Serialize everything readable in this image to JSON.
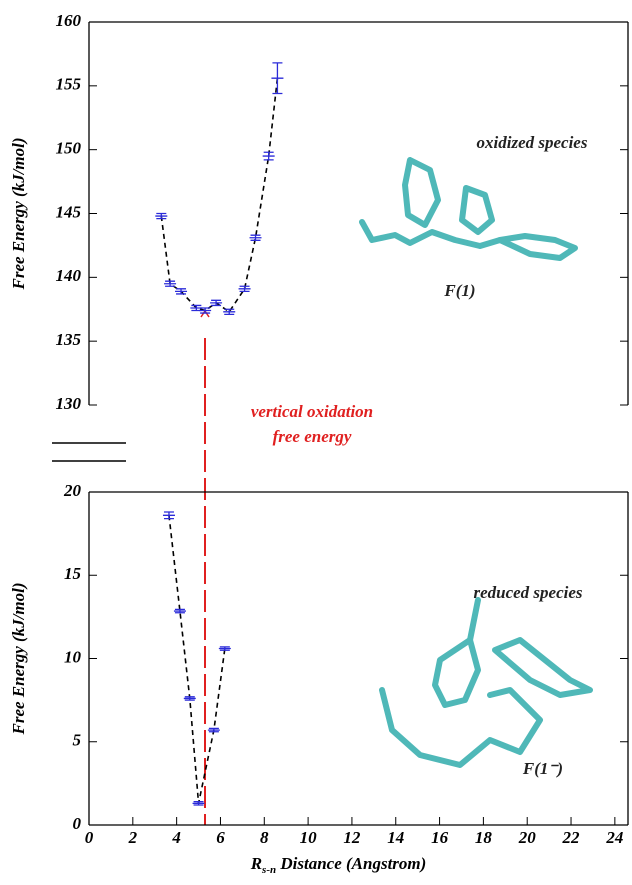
{
  "chart_data": [
    {
      "type": "line",
      "y_label": "Free Energy (kJ/mol)",
      "xlim": [
        0,
        24.6
      ],
      "ylim": [
        130,
        160
      ],
      "yticks": [
        130,
        135,
        140,
        145,
        150,
        155,
        160
      ],
      "series": [
        {
          "line_color": "#000000",
          "marker_color": "#2b2bd9",
          "x": [
            3.3,
            3.7,
            4.2,
            4.9,
            5.3,
            5.8,
            6.4,
            7.1,
            7.6,
            8.2,
            8.6
          ],
          "values": [
            144.8,
            139.5,
            138.9,
            137.6,
            137.4,
            138.0,
            137.3,
            139.1,
            143.1,
            149.5,
            155.6
          ],
          "errors": [
            0.2,
            0.2,
            0.2,
            0.2,
            0.2,
            0.2,
            0.2,
            0.2,
            0.2,
            0.3,
            1.2
          ]
        }
      ],
      "annotations": [
        "oxidized species",
        "F(1)"
      ]
    },
    {
      "type": "line",
      "y_label": "Free Energy (kJ/mol)",
      "x_label": {
        "main": "R",
        "sub": "s-n",
        "rest": " Distance (Angstrom)"
      },
      "xlim": [
        0,
        24.6
      ],
      "xticks": [
        0,
        2,
        4,
        6,
        8,
        10,
        12,
        14,
        16,
        18,
        20,
        22,
        24
      ],
      "ylim": [
        0,
        20
      ],
      "yticks": [
        0,
        5,
        10,
        15,
        20
      ],
      "series": [
        {
          "line_color": "#000000",
          "marker_color": "#2b2bd9",
          "x": [
            3.65,
            4.15,
            4.6,
            5.0,
            5.7,
            6.2
          ],
          "values": [
            18.6,
            12.85,
            7.6,
            1.3,
            5.7,
            10.6
          ],
          "errors": [
            0.2,
            0.1,
            0.1,
            0.1,
            0.1,
            0.1
          ]
        }
      ],
      "annotations": [
        "reduced species",
        "F(1⁻)"
      ]
    }
  ],
  "shared_annotation": [
    "vertical oxidation",
    "free energy"
  ]
}
